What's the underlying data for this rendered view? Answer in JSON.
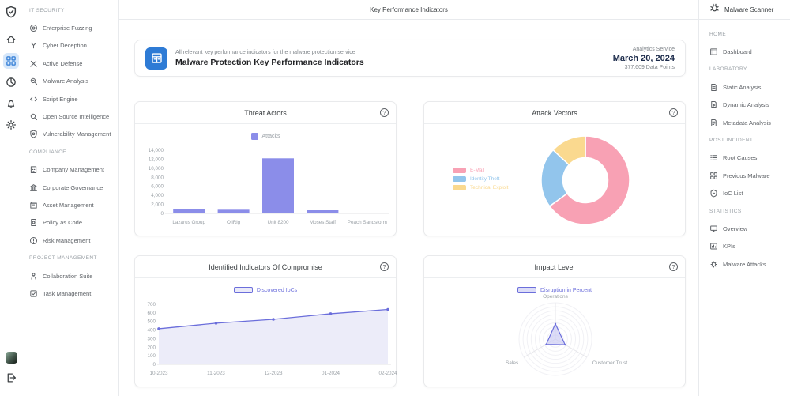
{
  "header": {
    "title": "Key Performance Indicators"
  },
  "colors": {
    "accent_blue": "#2e7bd5",
    "rail_active_bg": "#d6e7fa",
    "bar_purple": "#8b8de9",
    "line_purple": "#6b6edb",
    "line_fill": "#eaeaf8",
    "radar_fill": "#c9caf2",
    "donut_pink": "#f8a1b4",
    "donut_blue": "#92c5ec",
    "donut_yellow": "#fad98f",
    "border": "#e8eaed"
  },
  "left_rail": {
    "logo_icon": "shield-check-icon",
    "items": [
      {
        "icon": "home-icon",
        "active": false
      },
      {
        "icon": "dashboard-grid-icon",
        "active": true
      },
      {
        "icon": "analytics-pie-icon",
        "active": false
      },
      {
        "icon": "notifications-bell-icon",
        "active": false
      },
      {
        "icon": "settings-gear-icon",
        "active": false
      }
    ],
    "logout_icon": "logout-icon"
  },
  "left_nav": {
    "sections": [
      {
        "title": "IT SECURITY",
        "items": [
          {
            "label": "Enterprise Fuzzing",
            "icon": "target-icon"
          },
          {
            "label": "Cyber Deception",
            "icon": "mask-icon"
          },
          {
            "label": "Active Defense",
            "icon": "swords-icon"
          },
          {
            "label": "Malware Analysis",
            "icon": "bug-magnifier-icon"
          },
          {
            "label": "Script Engine",
            "icon": "code-icon"
          },
          {
            "label": "Open Source Intelligence",
            "icon": "magnifier-icon"
          },
          {
            "label": "Vulnerability Management",
            "icon": "shield-gear-icon"
          }
        ]
      },
      {
        "title": "COMPLIANCE",
        "items": [
          {
            "label": "Company Management",
            "icon": "building-icon"
          },
          {
            "label": "Corporate Governance",
            "icon": "bank-icon"
          },
          {
            "label": "Asset Management",
            "icon": "box-icon"
          },
          {
            "label": "Policy as Code",
            "icon": "policy-doc-icon"
          },
          {
            "label": "Risk Management",
            "icon": "risk-icon"
          }
        ]
      },
      {
        "title": "PROJECT MANAGEMENT",
        "items": [
          {
            "label": "Collaboration Suite",
            "icon": "people-icon"
          },
          {
            "label": "Task Management",
            "icon": "task-check-icon"
          }
        ]
      }
    ]
  },
  "right_nav": {
    "header": {
      "label": "Malware Scanner",
      "icon": "bug-icon"
    },
    "sections": [
      {
        "title": "HOME",
        "items": [
          {
            "label": "Dashboard",
            "icon": "dashboard-window-icon"
          }
        ]
      },
      {
        "title": "LABORATORY",
        "items": [
          {
            "label": "Static Analysis",
            "icon": "static-analysis-icon"
          },
          {
            "label": "Dynamic Analysis",
            "icon": "dynamic-analysis-icon"
          },
          {
            "label": "Metadata Analysis",
            "icon": "metadata-doc-icon"
          }
        ]
      },
      {
        "title": "POST INCIDENT",
        "items": [
          {
            "label": "Root Causes",
            "icon": "list-icon"
          },
          {
            "label": "Previous Malware",
            "icon": "grid-icon"
          },
          {
            "label": "IoC List",
            "icon": "badge-icon"
          }
        ]
      },
      {
        "title": "STATISTICS",
        "items": [
          {
            "label": "Overview",
            "icon": "monitor-icon"
          },
          {
            "label": "KPIs",
            "icon": "kpi-chart-icon"
          },
          {
            "label": "Malware Attacks",
            "icon": "bug-gear-icon"
          }
        ]
      }
    ]
  },
  "summary_card": {
    "icon": "kpi-dashboard-icon",
    "subtitle": "All relevant key performance indicators for the malware protection service",
    "title": "Malware Protection Key Performance Indicators",
    "service": "Analytics Service",
    "date": "March 20, 2024",
    "data_points": "377.609 Data Points"
  },
  "help_icon_label": "?",
  "chart_data": [
    {
      "type": "bar",
      "title": "Threat Actors",
      "legend_position": "top",
      "grid": false,
      "categories": [
        "Lazarus Group",
        "OilRig",
        "Unit 8200",
        "Moses Staff",
        "Peach Sandstorm"
      ],
      "series": [
        {
          "name": "Attacks",
          "color": "#8b8de9",
          "values": [
            1050,
            820,
            12200,
            700,
            100
          ]
        }
      ],
      "ylim": [
        0,
        14000
      ],
      "ytick_step": 2000
    },
    {
      "type": "donut",
      "title": "Attack Vectors",
      "legend_position": "left",
      "labels": [
        "E-Mail",
        "Identity Theft",
        "Technical Exploit"
      ],
      "values": [
        65,
        22,
        13
      ],
      "colors": [
        "#f8a1b4",
        "#92c5ec",
        "#fad98f"
      ]
    },
    {
      "type": "line",
      "title": "Identified Indicators Of Compromise",
      "legend_position": "top",
      "area_fill": true,
      "x": [
        "10-2023",
        "11-2023",
        "12-2023",
        "01-2024",
        "02-2024"
      ],
      "series": [
        {
          "name": "Discovered IoCs",
          "color": "#6b6edb",
          "fill": "#eaeaf8",
          "values": [
            415,
            480,
            525,
            590,
            640
          ]
        }
      ],
      "ylim": [
        0,
        700
      ],
      "ytick_step": 100
    },
    {
      "type": "radar",
      "title": "Impact Level",
      "legend_position": "top",
      "axes": [
        "Operations",
        "Customer Trust",
        "Sales"
      ],
      "series": [
        {
          "name": "Disruption in Percent",
          "color": "#6b6edb",
          "fill": "#c9caf2",
          "values": [
            42,
            31,
            29
          ]
        }
      ],
      "max": 100
    }
  ]
}
